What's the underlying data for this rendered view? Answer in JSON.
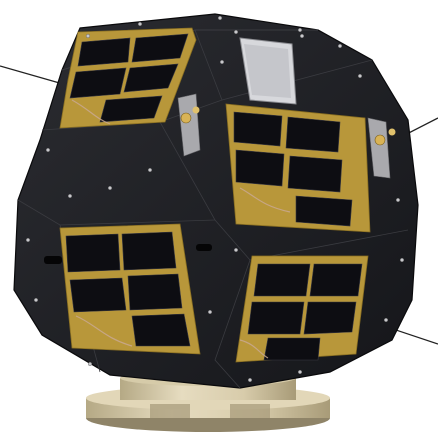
{
  "image": {
    "subject": "satellite",
    "colors": {
      "background": "#ffffff",
      "body": "#1c1d21",
      "body_shade": "#15161a",
      "body_light": "#2b2c31",
      "solar_panel_frame": "#b8973a",
      "solar_cell": "#0d0d12",
      "base_ring": "#cfc3a3",
      "bracket": "#a9a9ad",
      "antenna": "#222222"
    }
  }
}
